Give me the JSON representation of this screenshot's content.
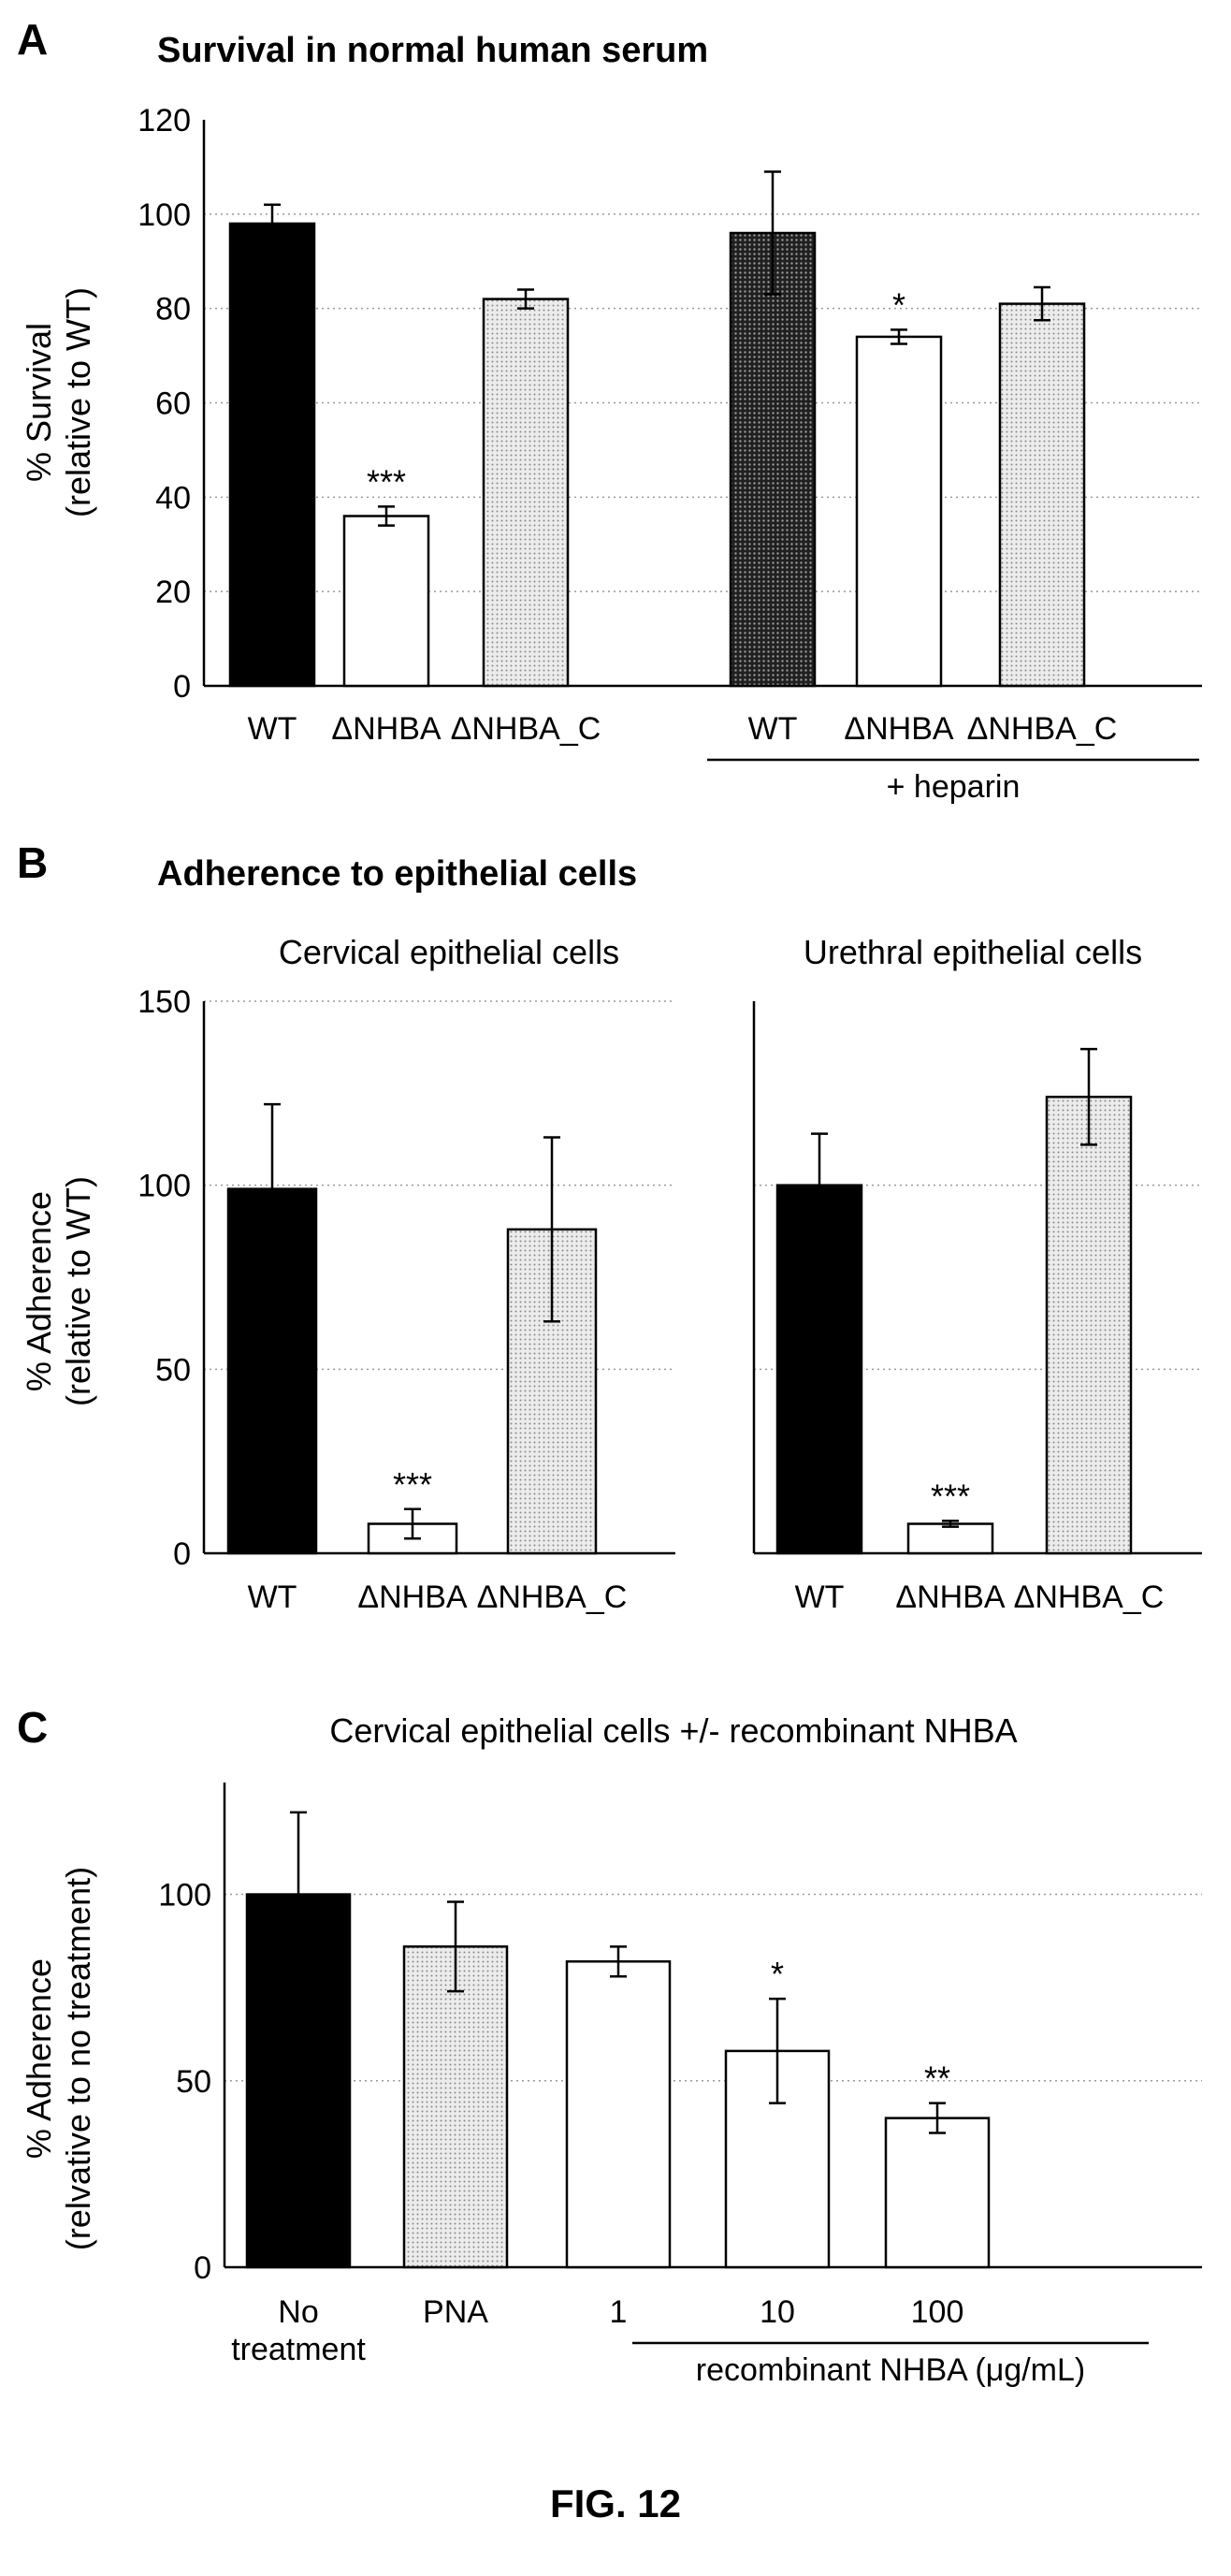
{
  "figure_caption": "FIG. 12",
  "colors": {
    "black": "#000000",
    "white": "#ffffff",
    "dots_light": "#d9d9d9",
    "dots_dark": "#3a3a3a",
    "gridline": "#9a9a9a"
  },
  "chart_data": [
    {
      "panel": "A",
      "type": "bar",
      "title": "Survival in normal human serum",
      "ylabel_line1": "% Survival",
      "ylabel_line2": "(relative to WT)",
      "ylim": [
        0,
        120
      ],
      "yticks": [
        "0",
        "20",
        "40",
        "60",
        "80",
        "100",
        "120"
      ],
      "grid": true,
      "categories": [
        "WT",
        "ΔNHBA",
        "ΔNHBA_C",
        "WT",
        "ΔNHBA",
        "ΔNHBA_C"
      ],
      "values": [
        98,
        36,
        82,
        96,
        74,
        81
      ],
      "errors": [
        4,
        2,
        2,
        13,
        1.5,
        3.5
      ],
      "fills": [
        "black",
        "white",
        "dots_light",
        "dots_dark",
        "white",
        "dots_light"
      ],
      "significance": [
        "",
        "***",
        "",
        "",
        "*",
        ""
      ],
      "group_label": "+ heparin"
    },
    {
      "panel": "B",
      "type": "bar",
      "title": "Adherence to epithelial cells",
      "ylabel_line1": "% Adherence",
      "ylabel_line2": "(relative to WT)",
      "ylim": [
        0,
        150
      ],
      "yticks": [
        "0",
        "50",
        "100",
        "150"
      ],
      "grid": true,
      "subplots": [
        {
          "subtitle": "Cervical epithelial cells",
          "categories": [
            "WT",
            "ΔNHBA",
            "ΔNHBA_C"
          ],
          "values": [
            99,
            8,
            88
          ],
          "errors": [
            23,
            4,
            25
          ],
          "fills": [
            "black",
            "white",
            "dots_light"
          ],
          "significance": [
            "",
            "***",
            ""
          ]
        },
        {
          "subtitle": "Urethral epithelial cells",
          "categories": [
            "WT",
            "ΔNHBA",
            "ΔNHBA_C"
          ],
          "values": [
            100,
            8,
            124
          ],
          "errors": [
            14,
            0.8,
            13
          ],
          "fills": [
            "black",
            "white",
            "dots_light"
          ],
          "significance": [
            "",
            "***",
            ""
          ]
        }
      ]
    },
    {
      "panel": "C",
      "type": "bar",
      "title": "Cervical epithelial cells +/- recombinant NHBA",
      "ylabel_line1": "% Adherence",
      "ylabel_line2": "(relvative to no treatment)",
      "ylim": [
        0,
        130
      ],
      "yticks": [
        "0",
        "50",
        "100"
      ],
      "grid": true,
      "categories": [
        [
          "No",
          "treatment"
        ],
        [
          "PNA"
        ],
        [
          "1"
        ],
        [
          "10"
        ],
        [
          "100"
        ]
      ],
      "values": [
        100,
        86,
        82,
        58,
        40
      ],
      "errors": [
        22,
        12,
        4,
        14,
        4
      ],
      "fills": [
        "black",
        "dots_light",
        "white",
        "white",
        "white"
      ],
      "significance": [
        "",
        "",
        "",
        "*",
        "**"
      ],
      "group_label": "recombinant NHBA (μg/mL)"
    }
  ]
}
